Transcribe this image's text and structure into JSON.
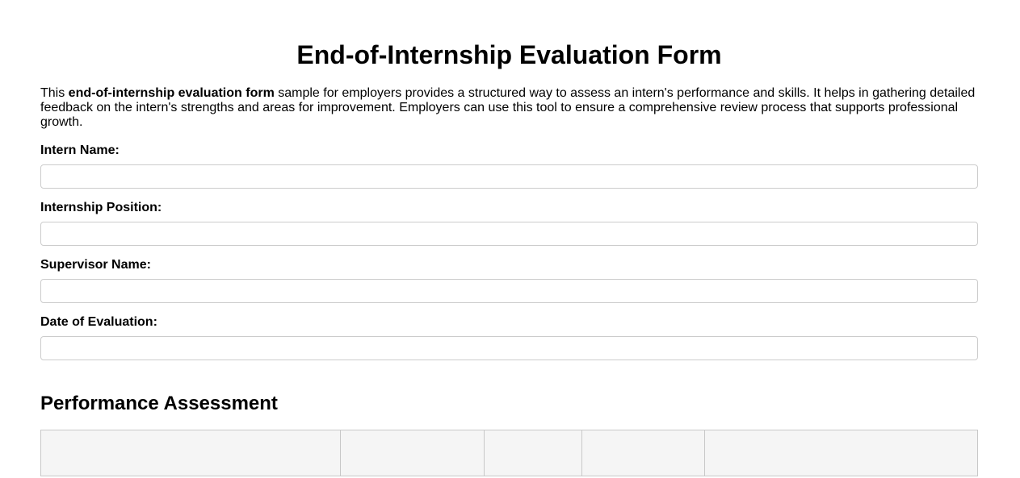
{
  "page": {
    "title": "End-of-Internship Evaluation Form"
  },
  "intro": {
    "lead": "This ",
    "bold_phrase": "end-of-internship evaluation form",
    "rest": " sample for employers provides a structured way to assess an intern's performance and skills. It helps in gathering detailed feedback on the intern's strengths and areas for improvement. Employers can use this tool to ensure a comprehensive review process that supports professional growth."
  },
  "fields": [
    {
      "label": "Intern Name:",
      "value": ""
    },
    {
      "label": "Internship Position:",
      "value": ""
    },
    {
      "label": "Supervisor Name:",
      "value": ""
    },
    {
      "label": "Date of Evaluation:",
      "value": ""
    }
  ],
  "performance_section": {
    "heading": "Performance Assessment",
    "table": {
      "visible_column_count": 5,
      "header_labels_visible": false
    }
  },
  "colors": {
    "input_border": "#cccccc",
    "table_border": "#c8c8c8",
    "table_header_bg": "#f5f5f5",
    "text": "#000000",
    "background": "#ffffff"
  }
}
